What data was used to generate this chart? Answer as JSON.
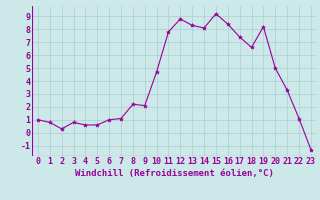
{
  "x": [
    0,
    1,
    2,
    3,
    4,
    5,
    6,
    7,
    8,
    9,
    10,
    11,
    12,
    13,
    14,
    15,
    16,
    17,
    18,
    19,
    20,
    21,
    22,
    23
  ],
  "y": [
    1.0,
    0.8,
    0.3,
    0.8,
    0.6,
    0.6,
    1.0,
    1.1,
    2.2,
    2.1,
    4.7,
    7.8,
    8.8,
    8.3,
    8.1,
    9.2,
    8.4,
    7.4,
    6.6,
    8.2,
    5.0,
    3.3,
    1.1,
    -1.3
  ],
  "line_color": "#990099",
  "marker": "*",
  "marker_size": 3,
  "bg_color": "#cce8e8",
  "grid_color": "#aacfcf",
  "xlabel": "Windchill (Refroidissement éolien,°C)",
  "xlabel_fontsize": 6.5,
  "yticks": [
    -1,
    0,
    1,
    2,
    3,
    4,
    5,
    6,
    7,
    8,
    9
  ],
  "xlim": [
    -0.5,
    23.5
  ],
  "ylim": [
    -1.8,
    9.8
  ],
  "tick_fontsize": 6.0
}
